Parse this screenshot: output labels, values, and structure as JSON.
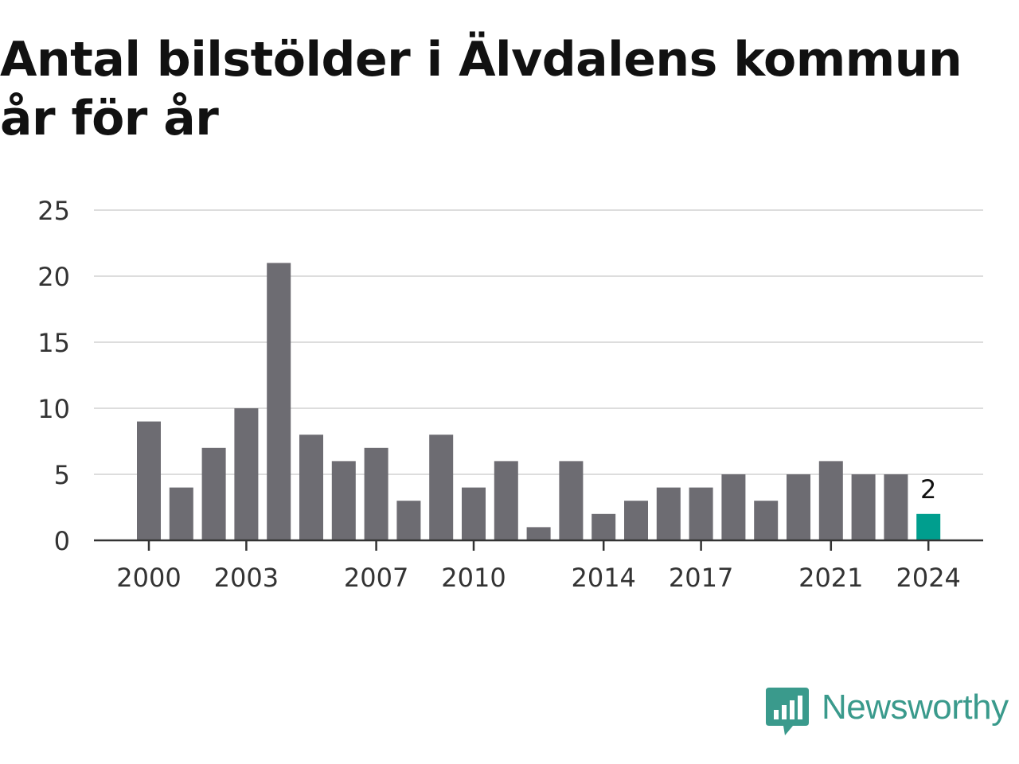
{
  "title": "Antal bilstölder i Älvdalens kommun år för år",
  "colors": {
    "bar": "#6d6c72",
    "highlight": "#009e8e",
    "grid": "#dddddd",
    "axis": "#333333",
    "brand": "#3a9a8c"
  },
  "brand": {
    "name": "Newsworthy",
    "icon": "bar-chart-speech-bubble-icon"
  },
  "chart_data": {
    "type": "bar",
    "title": "Antal bilstölder i Älvdalens kommun år för år",
    "xlabel": "",
    "ylabel": "",
    "categories": [
      2000,
      2001,
      2002,
      2003,
      2004,
      2005,
      2006,
      2007,
      2008,
      2009,
      2010,
      2011,
      2012,
      2013,
      2014,
      2015,
      2016,
      2017,
      2018,
      2019,
      2020,
      2021,
      2022,
      2023,
      2024
    ],
    "values": [
      9,
      4,
      7,
      10,
      21,
      8,
      6,
      7,
      3,
      8,
      4,
      6,
      1,
      6,
      2,
      3,
      4,
      4,
      5,
      3,
      5,
      6,
      5,
      5,
      2
    ],
    "x_tick_labels": [
      "2000",
      "2003",
      "2007",
      "2010",
      "2014",
      "2017",
      "2021",
      "2024"
    ],
    "y_ticks": [
      0,
      5,
      10,
      15,
      20,
      25
    ],
    "ylim": [
      0,
      25
    ],
    "grid": true,
    "legend": "none",
    "highlight": {
      "category": 2024,
      "label": "2"
    }
  }
}
